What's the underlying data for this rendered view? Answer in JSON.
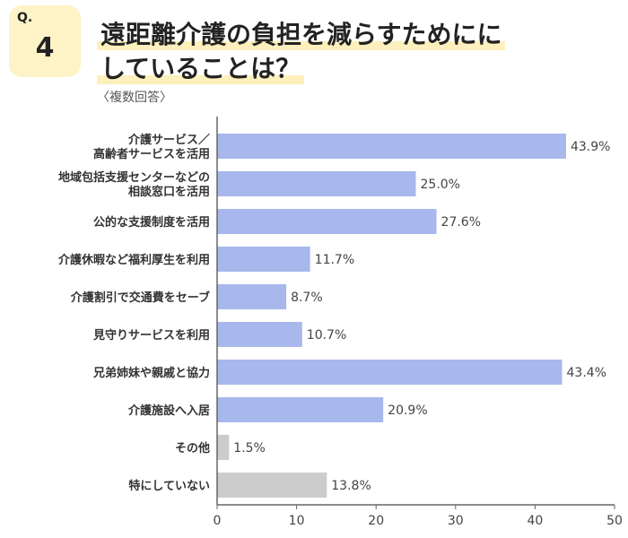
{
  "header": {
    "q_label": "Q.",
    "q_number": "4",
    "title_line1": "遠距離介護の負担を減らすためにに",
    "title_line2": "していることは？",
    "subtitle": "〈複数回答〉"
  },
  "chart_data": {
    "type": "bar",
    "orientation": "horizontal",
    "categories": [
      [
        "介護サービス／",
        "高齢者サービスを活用"
      ],
      [
        "地域包括支援センターなどの",
        "相談窓口を活用"
      ],
      [
        "公的な支援制度を活用"
      ],
      [
        "介護休暇など福利厚生を利用"
      ],
      [
        "介護割引で交通費をセーブ"
      ],
      [
        "見守りサービスを利用"
      ],
      [
        "兄弟姉妹や親戚と協力"
      ],
      [
        "介護施設へ入居"
      ],
      [
        "その他"
      ],
      [
        "特にしていない"
      ]
    ],
    "values": [
      43.9,
      25.0,
      27.6,
      11.7,
      8.7,
      10.7,
      43.4,
      20.9,
      1.5,
      13.8
    ],
    "value_labels": [
      "43.9%",
      "25.0%",
      "27.6%",
      "11.7%",
      "8.7%",
      "10.7%",
      "43.4%",
      "20.9%",
      "1.5%",
      "13.8%"
    ],
    "bar_colors": [
      "#a8b8ec",
      "#a8b8ec",
      "#a8b8ec",
      "#a8b8ec",
      "#a8b8ec",
      "#a8b8ec",
      "#a8b8ec",
      "#a8b8ec",
      "#cccccc",
      "#cccccc"
    ],
    "xlim": [
      0,
      50
    ],
    "xticks": [
      0,
      10,
      20,
      30,
      40,
      50
    ],
    "grid": false
  }
}
